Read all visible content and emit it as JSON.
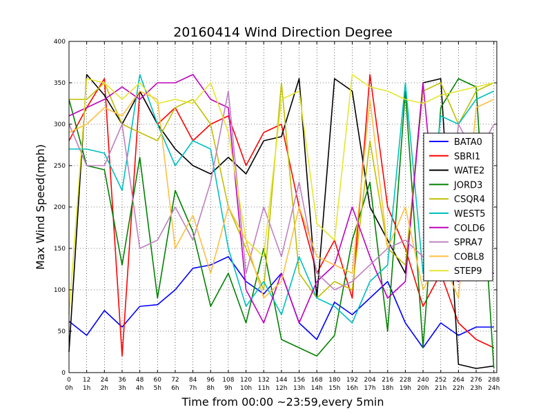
{
  "chart_data": {
    "type": "line",
    "title": "20160414 Wind Direction Degree",
    "xlabel": "Time from 00:00 ~23:59,every 5min",
    "ylabel": "Max Wind Speed(mph)",
    "xlim": [
      0,
      290
    ],
    "ylim": [
      0,
      400
    ],
    "grid": true,
    "legend_position": "right",
    "x_ticks": [
      0,
      12,
      24,
      36,
      48,
      60,
      72,
      84,
      96,
      108,
      120,
      132,
      144,
      156,
      168,
      180,
      192,
      204,
      216,
      228,
      240,
      252,
      264,
      276,
      288
    ],
    "x_tick_sublabels": [
      "0h",
      "1h",
      "2h",
      "3h",
      "4h",
      "5h",
      "6h",
      "7h",
      "8h",
      "9h",
      "10h",
      "11h",
      "12h",
      "13h",
      "14h",
      "15h",
      "16h",
      "17h",
      "18h",
      "19h",
      "20h",
      "21h",
      "22h",
      "23h",
      "24h"
    ],
    "y_ticks": [
      0,
      50,
      100,
      150,
      200,
      250,
      300,
      350,
      400
    ],
    "x_step": 12,
    "series": [
      {
        "name": "BATA0",
        "color": "#0000ff",
        "values": [
          62,
          45,
          75,
          55,
          80,
          82,
          100,
          126,
          130,
          140,
          110,
          95,
          120,
          60,
          40,
          85,
          70,
          90,
          110,
          60,
          30,
          60,
          45,
          55,
          55
        ]
      },
      {
        "name": "SBRI1",
        "color": "#ff0000",
        "values": [
          280,
          320,
          355,
          20,
          340,
          300,
          320,
          280,
          300,
          310,
          250,
          290,
          300,
          200,
          120,
          160,
          90,
          360,
          200,
          150,
          80,
          120,
          60,
          40,
          30
        ]
      },
      {
        "name": "WATE2",
        "color": "#000000",
        "values": [
          25,
          360,
          335,
          300,
          340,
          300,
          270,
          250,
          240,
          260,
          240,
          280,
          285,
          355,
          90,
          355,
          340,
          200,
          160,
          120,
          350,
          355,
          10,
          5,
          8
        ]
      },
      {
        "name": "JORD3",
        "color": "#008000",
        "values": [
          330,
          250,
          245,
          130,
          260,
          90,
          220,
          170,
          80,
          120,
          60,
          150,
          40,
          30,
          20,
          45,
          160,
          230,
          50,
          340,
          30,
          320,
          355,
          345,
          5
        ]
      },
      {
        "name": "CSQR4",
        "color": "#bfbf00",
        "values": [
          330,
          330,
          350,
          300,
          290,
          280,
          320,
          330,
          300,
          200,
          150,
          100,
          350,
          120,
          90,
          110,
          100,
          280,
          150,
          130,
          340,
          350,
          300,
          340,
          350
        ]
      },
      {
        "name": "WEST5",
        "color": "#00bfbf",
        "values": [
          270,
          270,
          265,
          220,
          360,
          300,
          250,
          280,
          270,
          150,
          80,
          110,
          70,
          140,
          90,
          80,
          60,
          110,
          130,
          350,
          120,
          310,
          300,
          330,
          340
        ]
      },
      {
        "name": "COLD6",
        "color": "#bf00bf",
        "values": [
          310,
          320,
          330,
          345,
          330,
          350,
          350,
          360,
          330,
          320,
          100,
          60,
          120,
          60,
          110,
          130,
          200,
          140,
          90,
          110,
          350,
          120,
          110,
          130,
          120
        ]
      },
      {
        "name": "SPRA7",
        "color": "#bf80bf",
        "values": [
          300,
          250,
          250,
          300,
          150,
          160,
          200,
          160,
          230,
          340,
          120,
          200,
          140,
          230,
          120,
          100,
          110,
          130,
          150,
          160,
          140,
          110,
          300,
          260,
          300
        ]
      },
      {
        "name": "COBL8",
        "color": "#ffbf40",
        "values": [
          290,
          300,
          320,
          310,
          340,
          330,
          150,
          190,
          120,
          200,
          160,
          90,
          110,
          200,
          140,
          130,
          120,
          330,
          150,
          200,
          100,
          140,
          90,
          320,
          330
        ]
      },
      {
        "name": "STEP9",
        "color": "#e5e52e",
        "values": [
          70,
          355,
          350,
          330,
          350,
          325,
          330,
          325,
          350,
          290,
          160,
          140,
          330,
          340,
          180,
          160,
          360,
          345,
          340,
          330,
          325,
          335,
          340,
          345,
          350
        ]
      }
    ]
  }
}
